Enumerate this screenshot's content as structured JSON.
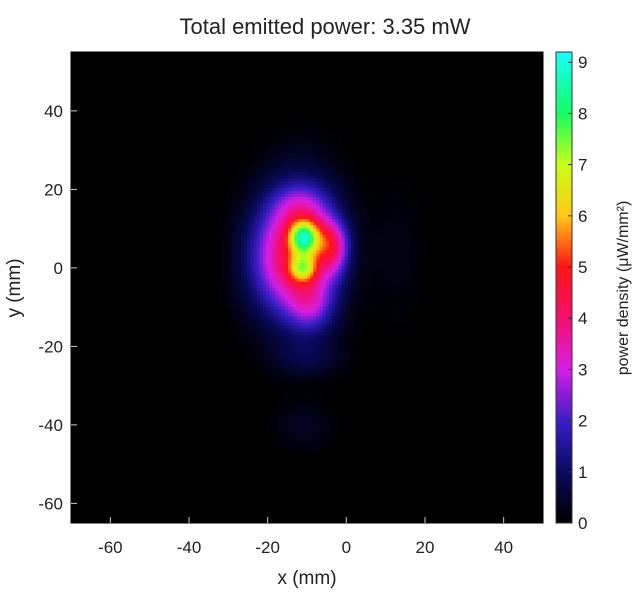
{
  "chart_data": {
    "type": "heatmap",
    "title": "Total emitted power: 3.35 mW",
    "xlabel": "x (mm)",
    "ylabel": "y (mm)",
    "xlim": [
      -70,
      50
    ],
    "ylim": [
      -65,
      55
    ],
    "xticks": [
      -60,
      -40,
      -20,
      0,
      20,
      40
    ],
    "yticks": [
      -60,
      -40,
      -20,
      0,
      20,
      40
    ],
    "colorbar": {
      "label": "power density (μW/mm²)",
      "range": [
        0,
        9.2
      ],
      "ticks": [
        0,
        1,
        2,
        3,
        4,
        5,
        6,
        7,
        8,
        9
      ]
    },
    "colormap": [
      {
        "value": 0.0,
        "color": "#000000"
      },
      {
        "value": 1.0,
        "color": "#0a0a60"
      },
      {
        "value": 2.0,
        "color": "#3a1ec8"
      },
      {
        "value": 3.0,
        "color": "#d61ee6"
      },
      {
        "value": 4.0,
        "color": "#f50f6e"
      },
      {
        "value": 5.0,
        "color": "#ff1414"
      },
      {
        "value": 6.0,
        "color": "#ffc814"
      },
      {
        "value": 7.0,
        "color": "#c8ff14"
      },
      {
        "value": 8.0,
        "color": "#14ff64"
      },
      {
        "value": 9.2,
        "color": "#14ffff"
      }
    ],
    "sources": [
      {
        "x": -11,
        "y": 4,
        "sx": 6.5,
        "sy": 12,
        "amp": 3.2
      },
      {
        "x": -11,
        "y": 8,
        "sx": 2.5,
        "sy": 3,
        "amp": 4.3
      },
      {
        "x": -11,
        "y": 0,
        "sx": 2.5,
        "sy": 2.5,
        "amp": 3.2
      },
      {
        "x": -6,
        "y": 7,
        "sx": 4,
        "sy": 4,
        "amp": 2.0
      },
      {
        "x": -3,
        "y": 4,
        "sx": 2.5,
        "sy": 5,
        "amp": 1.6
      },
      {
        "x": -18,
        "y": 3,
        "sx": 5,
        "sy": 10,
        "amp": 1.8
      },
      {
        "x": -9,
        "y": -9,
        "sx": 4,
        "sy": 5,
        "amp": 1.6
      },
      {
        "x": -11,
        "y": 16,
        "sx": 5,
        "sy": 4,
        "amp": 1.1
      },
      {
        "x": -10,
        "y": -23,
        "sx": 6,
        "sy": 3,
        "amp": 0.55
      },
      {
        "x": -11,
        "y": -40,
        "sx": 5,
        "sy": 4,
        "amp": 0.35
      },
      {
        "x": 13,
        "y": 4,
        "sx": 5,
        "sy": 12,
        "amp": 0.2
      },
      {
        "x": -25,
        "y": 2,
        "sx": 4,
        "sy": 10,
        "amp": 0.3
      }
    ]
  }
}
